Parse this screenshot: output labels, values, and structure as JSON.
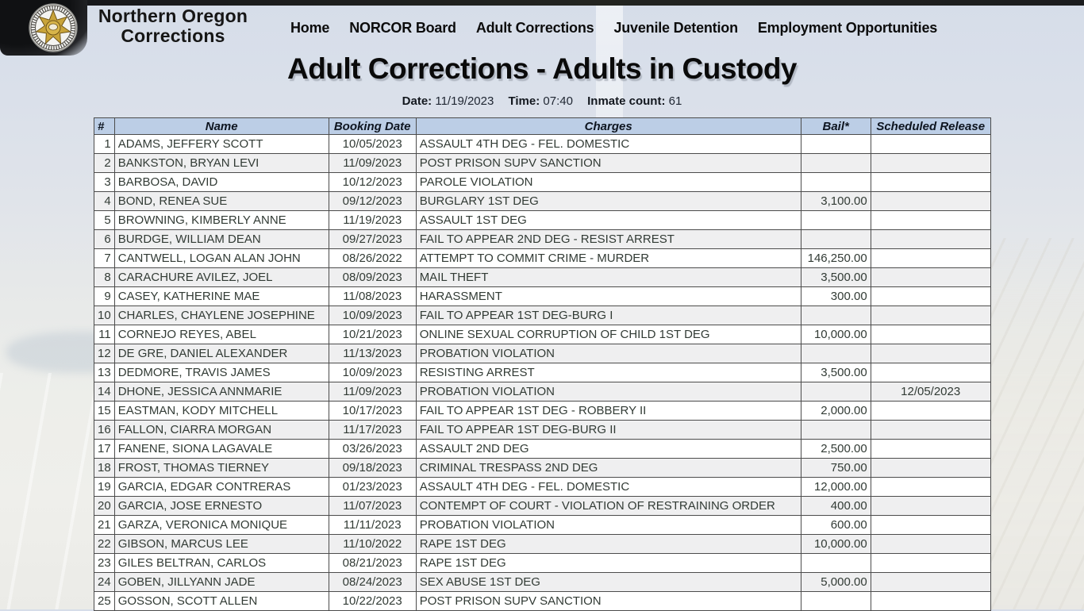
{
  "brand": {
    "line1": "Northern Oregon",
    "line2": "Corrections",
    "logo_icon": "sheriff-badge-icon"
  },
  "nav": {
    "items": [
      "Home",
      "NORCOR Board",
      "Adult Corrections",
      "Juvenile Detention",
      "Employment Opportunities"
    ]
  },
  "page": {
    "title": "Adult Corrections - Adults in Custody"
  },
  "meta": {
    "date_label": "Date:",
    "date_value": "11/19/2023",
    "time_label": "Time:",
    "time_value": "07:40",
    "count_label": "Inmate count:",
    "count_value": "61"
  },
  "table": {
    "columns": [
      "#",
      "Name",
      "Booking Date",
      "Charges",
      "Bail*",
      "Scheduled Release"
    ],
    "rows": [
      [
        "1",
        "ADAMS, JEFFERY SCOTT",
        "10/05/2023",
        "ASSAULT 4TH DEG - FEL. DOMESTIC",
        "",
        ""
      ],
      [
        "2",
        "BANKSTON, BRYAN LEVI",
        "11/09/2023",
        "POST PRISON SUPV SANCTION",
        "",
        ""
      ],
      [
        "3",
        "BARBOSA, DAVID",
        "10/12/2023",
        "PAROLE VIOLATION",
        "",
        ""
      ],
      [
        "4",
        "BOND, RENEA SUE",
        "09/12/2023",
        "BURGLARY 1ST DEG",
        "3,100.00",
        ""
      ],
      [
        "5",
        "BROWNING, KIMBERLY ANNE",
        "11/19/2023",
        "ASSAULT 1ST DEG",
        "",
        ""
      ],
      [
        "6",
        "BURDGE, WILLIAM DEAN",
        "09/27/2023",
        "FAIL TO APPEAR 2ND DEG - RESIST ARREST",
        "",
        ""
      ],
      [
        "7",
        "CANTWELL, LOGAN ALAN JOHN",
        "08/26/2022",
        "ATTEMPT TO COMMIT CRIME - MURDER",
        "146,250.00",
        ""
      ],
      [
        "8",
        "CARACHURE AVILEZ, JOEL",
        "08/09/2023",
        "MAIL THEFT",
        "3,500.00",
        ""
      ],
      [
        "9",
        "CASEY, KATHERINE MAE",
        "11/08/2023",
        "HARASSMENT",
        "300.00",
        ""
      ],
      [
        "10",
        "CHARLES, CHAYLENE JOSEPHINE",
        "10/09/2023",
        "FAIL TO APPEAR 1ST DEG-BURG I",
        "",
        ""
      ],
      [
        "11",
        "CORNEJO REYES, ABEL",
        "10/21/2023",
        "ONLINE SEXUAL CORRUPTION OF CHILD 1ST DEG",
        "10,000.00",
        ""
      ],
      [
        "12",
        "DE GRE, DANIEL ALEXANDER",
        "11/13/2023",
        "PROBATION VIOLATION",
        "",
        ""
      ],
      [
        "13",
        "DEDMORE, TRAVIS JAMES",
        "10/09/2023",
        "RESISTING ARREST",
        "3,500.00",
        ""
      ],
      [
        "14",
        "DHONE, JESSICA ANNMARIE",
        "11/09/2023",
        "PROBATION VIOLATION",
        "",
        "12/05/2023"
      ],
      [
        "15",
        "EASTMAN, KODY MITCHELL",
        "10/17/2023",
        "FAIL TO APPEAR 1ST DEG - ROBBERY II",
        "2,000.00",
        ""
      ],
      [
        "16",
        "FALLON, CIARRA MORGAN",
        "11/17/2023",
        "FAIL TO APPEAR 1ST DEG-BURG II",
        "",
        ""
      ],
      [
        "17",
        "FANENE, SIONA LAGAVALE",
        "03/26/2023",
        "ASSAULT 2ND DEG",
        "2,500.00",
        ""
      ],
      [
        "18",
        "FROST, THOMAS TIERNEY",
        "09/18/2023",
        "CRIMINAL TRESPASS 2ND DEG",
        "750.00",
        ""
      ],
      [
        "19",
        "GARCIA, EDGAR CONTRERAS",
        "01/23/2023",
        "ASSAULT 4TH DEG - FEL. DOMESTIC",
        "12,000.00",
        ""
      ],
      [
        "20",
        "GARCIA, JOSE ERNESTO",
        "11/07/2023",
        "CONTEMPT OF COURT - VIOLATION OF RESTRAINING ORDER",
        "400.00",
        ""
      ],
      [
        "21",
        "GARZA, VERONICA MONIQUE",
        "11/11/2023",
        "PROBATION VIOLATION",
        "600.00",
        ""
      ],
      [
        "22",
        "GIBSON, MARCUS LEE",
        "11/10/2022",
        "RAPE 1ST DEG",
        "10,000.00",
        ""
      ],
      [
        "23",
        "GILES BELTRAN, CARLOS",
        "08/21/2023",
        "RAPE 1ST DEG",
        "",
        ""
      ],
      [
        "24",
        "GOBEN, JILLYANN JADE",
        "08/24/2023",
        "SEX ABUSE 1ST DEG",
        "5,000.00",
        ""
      ],
      [
        "25",
        "GOSSON, SCOTT ALLEN",
        "10/22/2023",
        "POST PRISON SUPV SANCTION",
        "",
        ""
      ]
    ]
  },
  "colors": {
    "header_bg": "#bccee6",
    "row_alt_bg": "#efeff0",
    "table_border": "#4c4c4c",
    "badge_gold": "#c9a43a"
  }
}
